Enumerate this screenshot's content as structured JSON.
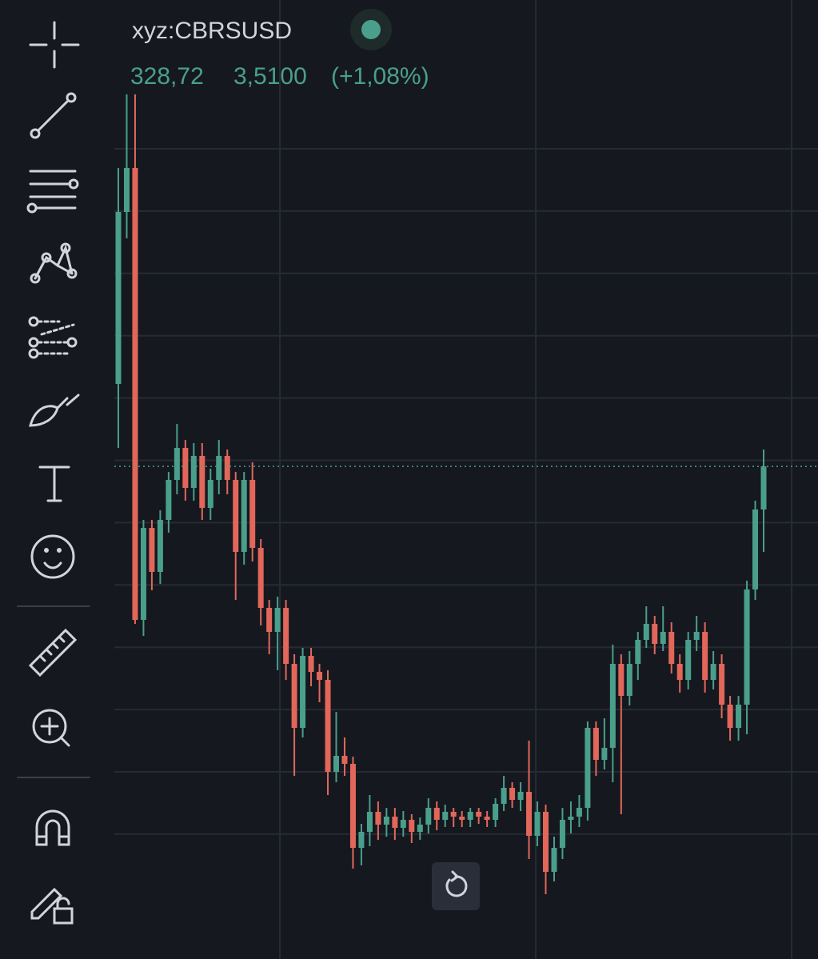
{
  "header": {
    "symbol": "xyz:CBRSUSD",
    "last": "328,72",
    "change": "3,5100",
    "change_pct": "(+1,08%)"
  },
  "chart_data": {
    "type": "candlestick",
    "open": [
      354.5,
      408.25,
      422,
      280.75,
      309.5,
      295.75,
      312,
      324.5,
      334.5,
      322,
      332,
      315.75,
      324.5,
      332,
      324.5,
      302,
      324.5,
      303.25,
      284.5,
      277,
      284.5,
      267,
      247,
      269.5,
      264.5,
      262,
      233.25,
      238.25,
      235.75,
      209.5,
      214.5,
      220.75,
      216.75,
      219.25,
      215.75,
      218.25,
      214.5,
      216.75,
      222,
      218.25,
      220.75,
      219.25,
      218.25,
      220.75,
      219.25,
      218.25,
      223.25,
      228.25,
      224.5,
      227,
      213.25,
      220.75,
      202,
      209.5,
      218.25,
      219.25,
      222,
      247,
      237,
      240.75,
      267,
      257,
      267,
      274.5,
      279.5,
      273.25,
      277,
      267,
      262,
      274.5,
      277,
      262,
      267,
      254.25,
      247,
      254.25,
      290.25,
      315.25
    ],
    "high": [
      422,
      445,
      445,
      312,
      312,
      315,
      327,
      342,
      337,
      336,
      336,
      328,
      337,
      334,
      327,
      327,
      330,
      306,
      287,
      288,
      287,
      270,
      272,
      272,
      267,
      265,
      252,
      244,
      238,
      217,
      226,
      224,
      222,
      222,
      221,
      220,
      219,
      225,
      224,
      223,
      222,
      221,
      222,
      222,
      221,
      225,
      232,
      230,
      230,
      243,
      224,
      223,
      213,
      222,
      224,
      226,
      249,
      249,
      250,
      273,
      270,
      271,
      277,
      285,
      282,
      285,
      280,
      270,
      277,
      282,
      280,
      271,
      270,
      257,
      257,
      293,
      318,
      334
    ],
    "low": [
      334.5,
      400,
      279.5,
      275.75,
      290,
      292,
      308,
      320,
      318,
      318,
      312,
      312,
      320,
      320,
      287,
      298,
      299,
      279,
      270,
      265,
      262,
      232,
      244,
      260,
      255,
      226,
      230,
      232,
      203,
      204,
      210,
      212,
      213,
      212,
      213,
      211,
      212,
      214,
      215,
      216,
      216,
      216,
      216,
      217,
      216,
      216,
      221,
      222,
      221,
      206,
      210,
      195,
      199,
      206,
      214,
      216,
      218,
      232,
      234,
      230,
      220,
      254,
      262,
      272,
      270,
      271,
      264,
      258,
      259,
      271,
      258,
      259,
      250,
      243,
      243,
      245,
      287,
      302
    ],
    "close": [
      408.25,
      422,
      280.75,
      309.5,
      295.75,
      312,
      324.5,
      334.5,
      322,
      332,
      315.75,
      324.5,
      332,
      324.5,
      302,
      324.5,
      303.25,
      284.5,
      277,
      284.5,
      267,
      247,
      269.5,
      264.5,
      262,
      233.25,
      238.25,
      235.75,
      209.5,
      214.5,
      220.75,
      216.75,
      219.25,
      215.75,
      218.25,
      214.5,
      216.75,
      222,
      218.25,
      220.75,
      219.25,
      218.25,
      220.75,
      219.25,
      218.25,
      223.25,
      228.25,
      224.5,
      227,
      213.25,
      220.75,
      202,
      209.5,
      218.25,
      219.25,
      222,
      247,
      237,
      240.75,
      267,
      257,
      267,
      274.5,
      279.5,
      273.25,
      277,
      267,
      262,
      274.5,
      277,
      262,
      267,
      254.25,
      247,
      254.25,
      290.25,
      315.25,
      328.72
    ],
    "up_color": "#4a9f8c",
    "down_color": "#e2675a",
    "grid": true
  }
}
